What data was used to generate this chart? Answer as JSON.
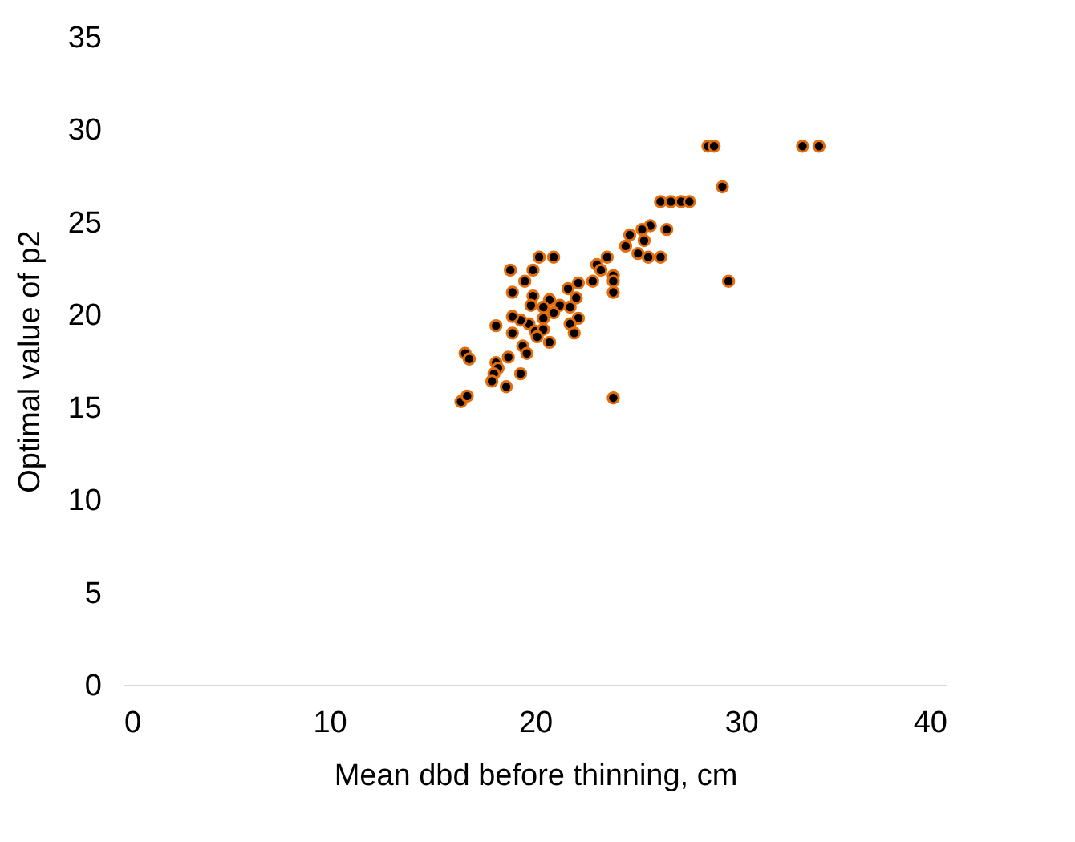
{
  "chart_data": {
    "type": "scatter",
    "xlabel": "Mean dbd before thinning, cm",
    "ylabel": "Optimal value of p2",
    "xlim": [
      0,
      40
    ],
    "xticks": [
      0,
      10,
      20,
      30,
      40
    ],
    "ylim": [
      0,
      35
    ],
    "yticks": [
      0,
      5,
      10,
      15,
      20,
      25,
      30,
      35
    ],
    "grid": false,
    "marker": "circle",
    "series": [
      {
        "color": "#000000",
        "x": [
          26.4,
          25.6,
          25.2,
          24.6,
          25.3,
          24.4,
          25.0,
          25.5,
          26.1,
          29.4,
          23.5,
          23.0,
          23.2,
          23.8,
          23.8,
          23.8,
          22.8,
          22.1,
          21.6,
          22.0,
          20.9,
          20.2,
          19.9,
          18.8,
          19.5,
          18.9,
          19.9,
          20.7,
          20.4,
          19.8,
          21.2,
          21.7,
          22.1,
          21.7,
          21.9,
          20.9,
          20.4,
          19.7,
          19.3,
          18.9,
          18.1,
          18.9,
          20.0,
          20.4,
          20.1,
          20.7,
          19.4,
          19.6,
          18.7,
          18.1,
          18.2,
          18.0,
          17.9,
          18.6,
          19.3,
          16.6,
          16.8,
          16.4,
          16.7,
          23.8,
          28.4,
          28.7,
          33.0,
          33.8,
          29.1,
          26.1,
          26.6,
          27.1,
          27.5
        ],
        "values": [
          24.6,
          24.8,
          24.6,
          24.3,
          24.0,
          23.7,
          23.3,
          23.1,
          23.1,
          21.8,
          23.1,
          22.7,
          22.4,
          22.1,
          21.8,
          21.2,
          21.8,
          21.7,
          21.4,
          20.9,
          23.1,
          23.1,
          22.4,
          22.4,
          21.8,
          21.2,
          21.0,
          20.8,
          20.4,
          20.5,
          20.5,
          20.4,
          19.8,
          19.5,
          19.0,
          20.1,
          19.8,
          19.5,
          19.7,
          19.9,
          19.4,
          19.0,
          19.1,
          19.2,
          18.8,
          18.5,
          18.3,
          17.9,
          17.7,
          17.4,
          17.1,
          16.8,
          16.4,
          16.1,
          16.8,
          17.9,
          17.6,
          15.3,
          15.6,
          15.5,
          29.1,
          29.1,
          29.1,
          29.1,
          26.9,
          26.1,
          26.1,
          26.1,
          26.1
        ]
      }
    ]
  }
}
